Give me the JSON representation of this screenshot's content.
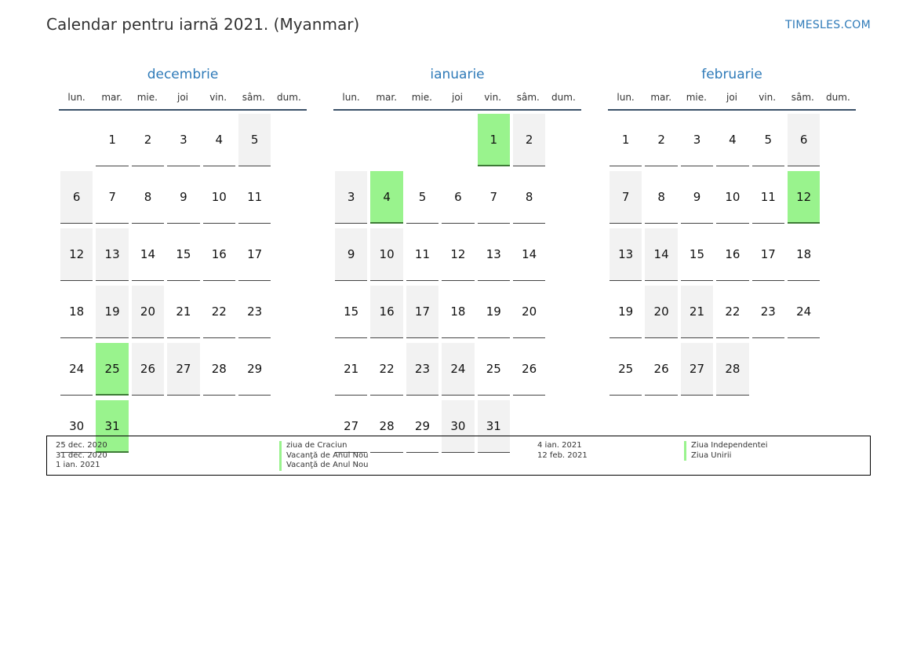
{
  "header": {
    "title": "Calendar pentru iarnă 2021. (Myanmar)",
    "brand": "TIMESLES.COM"
  },
  "weekdays": [
    "lun.",
    "mar.",
    "mie.",
    "joi",
    "vin.",
    "sâm.",
    "dum."
  ],
  "colors": {
    "accent": "#2e7ab8",
    "holiday": "#99f38d",
    "weekend": "#f2f2f2"
  },
  "months": [
    {
      "name": "decembrie",
      "start_offset": 1,
      "days": 31,
      "holidays": [
        25,
        31
      ]
    },
    {
      "name": "ianuarie",
      "start_offset": 4,
      "days": 31,
      "holidays": [
        1,
        4
      ]
    },
    {
      "name": "februarie",
      "start_offset": 0,
      "days": 28,
      "holidays": [
        12
      ]
    }
  ],
  "legend": {
    "left": [
      {
        "date": "25 dec. 2020",
        "name": "ziua de Craciun"
      },
      {
        "date": "31 dec. 2020",
        "name": "Vacanţă de Anul Nou"
      },
      {
        "date": "1 ian. 2021",
        "name": "Vacanţă de Anul Nou"
      }
    ],
    "right": [
      {
        "date": "4 ian. 2021",
        "name": "Ziua Independentei"
      },
      {
        "date": "12 feb. 2021",
        "name": "Ziua Unirii"
      }
    ]
  }
}
